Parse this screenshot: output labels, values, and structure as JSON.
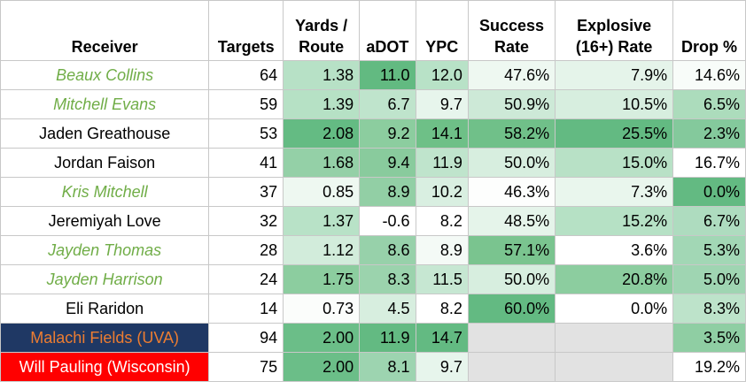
{
  "headers": [
    "Receiver",
    "Targets",
    "Yards / Route",
    "aDOT",
    "YPC",
    "Success Rate",
    "Explosive (16+) Rate",
    "Drop %"
  ],
  "rows": [
    {
      "name": "Beaux Collins",
      "name_style": "italic-green",
      "targets": "64",
      "yards_route": "1.38",
      "adot": "11.0",
      "ypc": "12.0",
      "success": "47.6%",
      "explosive": "7.9%",
      "drop": "14.6%",
      "colors": {
        "yards_route": "#b7e1c6",
        "adot": "#62ba81",
        "ypc": "#b8e2c7",
        "success": "#eef8f1",
        "explosive": "#e5f4ea",
        "drop": "#f8fcf9"
      }
    },
    {
      "name": "Mitchell Evans",
      "name_style": "italic-green",
      "targets": "59",
      "yards_route": "1.39",
      "adot": "6.7",
      "ypc": "9.7",
      "success": "50.9%",
      "explosive": "10.5%",
      "drop": "6.5%",
      "colors": {
        "yards_route": "#b6e1c5",
        "adot": "#bfe4cc",
        "ypc": "#e7f5ec",
        "success": "#cde9d7",
        "explosive": "#d7eedf",
        "drop": "#acdcbc"
      }
    },
    {
      "name": "Jaden Greathouse",
      "name_style": "normal",
      "targets": "53",
      "yards_route": "2.08",
      "adot": "9.2",
      "ypc": "14.1",
      "success": "58.2%",
      "explosive": "25.5%",
      "drop": "2.3%",
      "colors": {
        "yards_route": "#64bb83",
        "adot": "#8ccd9f",
        "ypc": "#6ec087",
        "success": "#70c089",
        "explosive": "#63ba82",
        "drop": "#84c99c"
      }
    },
    {
      "name": "Jordan Faison",
      "name_style": "normal",
      "targets": "41",
      "yards_route": "1.68",
      "adot": "9.4",
      "ypc": "11.9",
      "success": "50.0%",
      "explosive": "15.0%",
      "drop": "16.7%",
      "colors": {
        "yards_route": "#94d0a7",
        "adot": "#89cb9d",
        "ypc": "#bfe4cc",
        "success": "#d7eedf",
        "explosive": "#b8e1c6",
        "drop": "#ffffff"
      }
    },
    {
      "name": "Kris Mitchell",
      "name_style": "italic-green",
      "targets": "37",
      "yards_route": "0.85",
      "adot": "8.9",
      "ypc": "10.2",
      "success": "46.3%",
      "explosive": "7.3%",
      "drop": "0.0%",
      "colors": {
        "yards_route": "#eef8f1",
        "adot": "#92cfa5",
        "ypc": "#d9efe1",
        "success": "#fdfefd",
        "explosive": "#e9f6ed",
        "drop": "#63ba82"
      }
    },
    {
      "name": "Jeremiyah Love",
      "name_style": "normal",
      "targets": "32",
      "yards_route": "1.37",
      "adot": "-0.6",
      "ypc": "8.2",
      "success": "48.5%",
      "explosive": "15.2%",
      "drop": "6.7%",
      "colors": {
        "yards_route": "#b8e2c7",
        "adot": "#ffffff",
        "ypc": "#ffffff",
        "success": "#e5f4ea",
        "explosive": "#b6e1c5",
        "drop": "#aedcbf"
      }
    },
    {
      "name": "Jayden Thomas",
      "name_style": "italic-green",
      "targets": "28",
      "yards_route": "1.12",
      "adot": "8.6",
      "ypc": "8.9",
      "success": "57.1%",
      "explosive": "3.6%",
      "drop": "5.3%",
      "colors": {
        "yards_route": "#d2ecdb",
        "adot": "#97d1aa",
        "ypc": "#f4faf6",
        "success": "#7ac48f",
        "explosive": "#ffffff",
        "drop": "#a2d7b5"
      }
    },
    {
      "name": "Jayden Harrison",
      "name_style": "italic-green",
      "targets": "24",
      "yards_route": "1.75",
      "adot": "8.3",
      "ypc": "11.5",
      "success": "50.0%",
      "explosive": "20.8%",
      "drop": "5.0%",
      "colors": {
        "yards_route": "#8ccd9f",
        "adot": "#9bd3ad",
        "ypc": "#c6e7d2",
        "success": "#d7eedf",
        "explosive": "#8ccd9f",
        "drop": "#9fd5b2"
      }
    },
    {
      "name": "Eli Raridon",
      "name_style": "normal",
      "targets": "14",
      "yards_route": "0.73",
      "adot": "4.5",
      "ypc": "8.2",
      "success": "60.0%",
      "explosive": "0.0%",
      "drop": "8.3%",
      "colors": {
        "yards_route": "#fbfdfb",
        "adot": "#d7eedf",
        "ypc": "#ffffff",
        "success": "#63ba82",
        "explosive": "#ffffff",
        "drop": "#bde3ca"
      }
    },
    {
      "name": "Malachi Fields (UVA)",
      "name_style": "uva",
      "targets": "94",
      "yards_route": "2.00",
      "adot": "11.9",
      "ypc": "14.7",
      "success": "",
      "explosive": "",
      "drop": "3.5%",
      "colors": {
        "yards_route": "#6bbe88",
        "adot": "#63ba82",
        "ypc": "#63ba82",
        "success": "#e2e2e2",
        "explosive": "#e2e2e2",
        "drop": "#8fceA3"
      },
      "name_bg": "#1f3864",
      "name_color": "#ed7d31"
    },
    {
      "name": "Will Pauling (Wisconsin)",
      "name_style": "wisconsin",
      "targets": "75",
      "yards_route": "2.00",
      "adot": "8.1",
      "ypc": "9.7",
      "success": "",
      "explosive": "",
      "drop": "19.2%",
      "colors": {
        "yards_route": "#6bbe88",
        "adot": "#9dd4b0",
        "ypc": "#e7f5ec",
        "success": "#e2e2e2",
        "explosive": "#e2e2e2",
        "drop": "#ffffff"
      },
      "name_bg": "#ff0000",
      "name_color": "#ffffff"
    }
  ]
}
